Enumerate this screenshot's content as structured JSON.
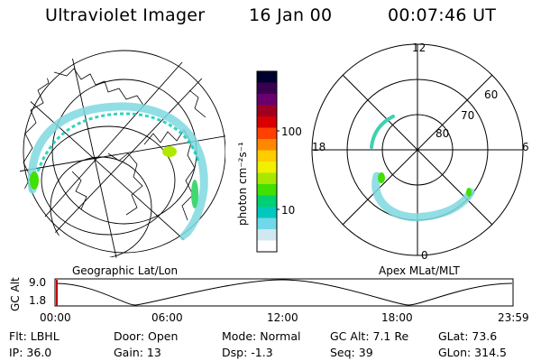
{
  "header": {
    "instrument": "Ultraviolet Imager",
    "date": "16 Jan 00",
    "time": "00:07:46 UT"
  },
  "left_panel": {
    "label": "Geographic Lat/Lon"
  },
  "colorbar": {
    "unit_label": "photon cm⁻²s⁻¹",
    "tick_labels": [
      "100",
      "10"
    ],
    "colors": [
      "#000030",
      "#3a0050",
      "#6a0070",
      "#a00020",
      "#d80000",
      "#ff4000",
      "#ff8800",
      "#ffcc00",
      "#f0f000",
      "#a8e800",
      "#40e000",
      "#00d070",
      "#00c8c0",
      "#70d8e8",
      "#d0e8f0",
      "#ffffff"
    ]
  },
  "right_panel": {
    "label": "Apex MLat/MLT",
    "mlt_labels": {
      "top": "12",
      "left": "18",
      "right": "6",
      "bottom": "0"
    },
    "lat_labels": [
      "60",
      "70",
      "80"
    ]
  },
  "timeline": {
    "ylabel": "GC Alt",
    "y_ticks": [
      "9.0",
      "1.8"
    ],
    "x_ticks": [
      "00:00",
      "06:00",
      "12:00",
      "18:00",
      "23:59"
    ],
    "cursor_color": "#c00000"
  },
  "info": {
    "row1": {
      "flt": "Flt: LBHL",
      "door": "Door: Open",
      "mode": "Mode: Normal",
      "gcalt": "GC Alt: 7.1 Re",
      "glat": "GLat:  73.6"
    },
    "row2": {
      "ip": "IP: 36.0",
      "gain": "Gain: 13",
      "dsp": "Dsp:    -1.3",
      "seq": "Seq: 39",
      "glon": "GLon: 314.5"
    }
  }
}
